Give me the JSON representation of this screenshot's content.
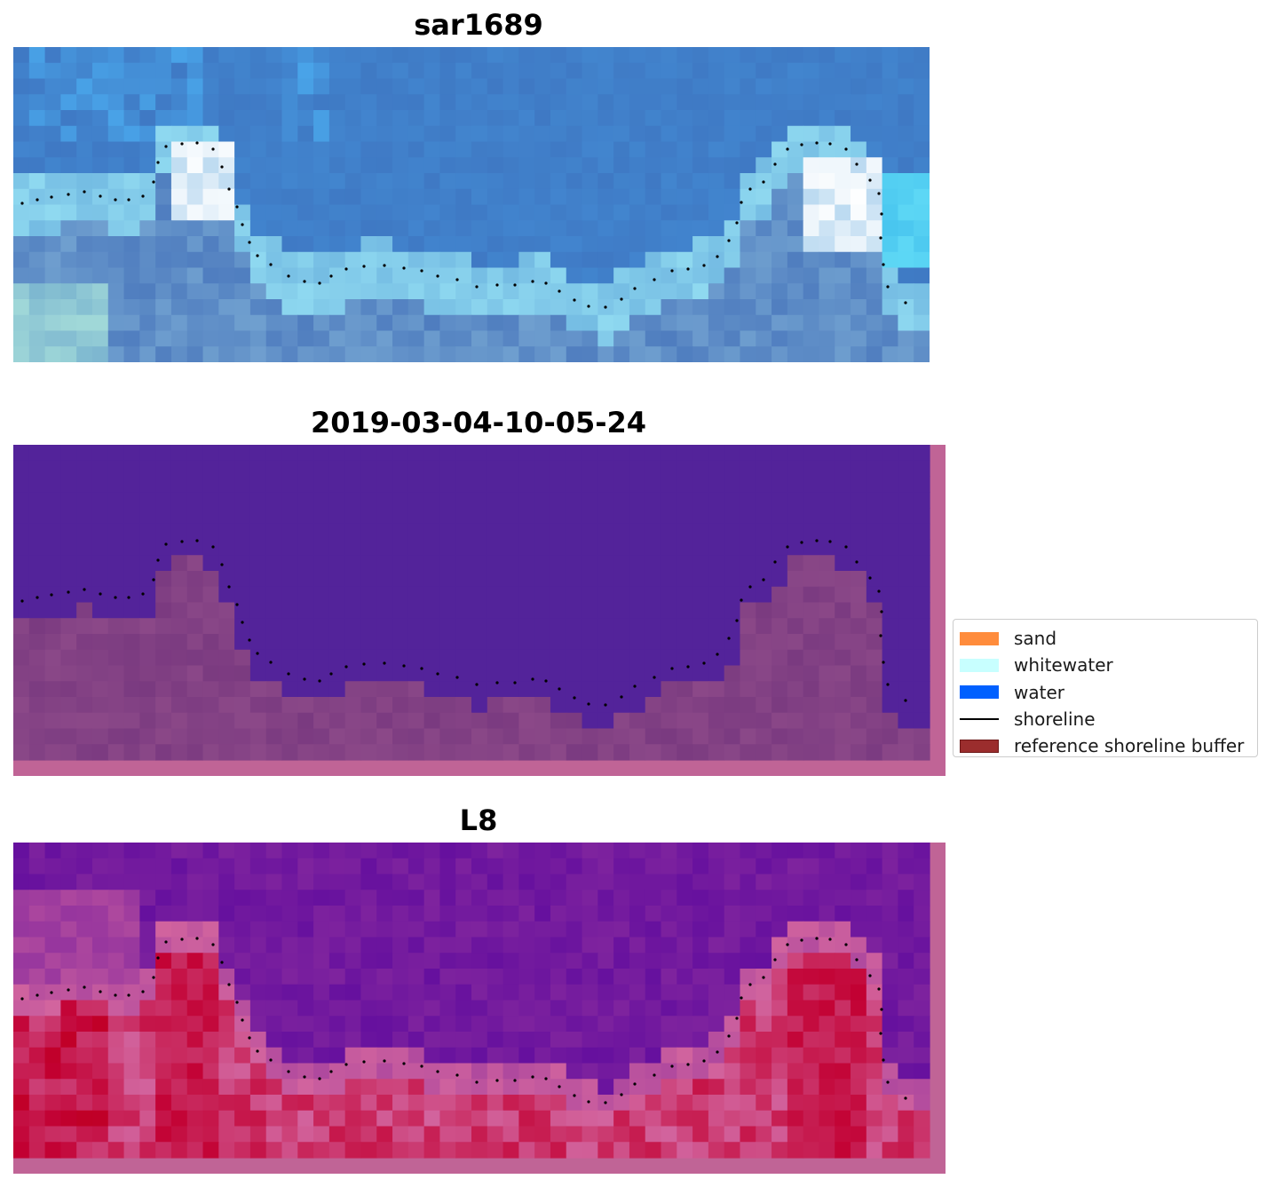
{
  "panels": [
    {
      "title": "sar1689",
      "kind": "rgb"
    },
    {
      "title": "2019-03-04-10-05-24",
      "kind": "classification"
    },
    {
      "title": "L8",
      "kind": "index"
    }
  ],
  "legend": {
    "items": [
      {
        "label": "sand",
        "color": "#ff8c3c",
        "kind": "patch"
      },
      {
        "label": "whitewater",
        "color": "#c8ffff",
        "kind": "patch"
      },
      {
        "label": "water",
        "color": "#0060ff",
        "kind": "patch"
      },
      {
        "label": "shoreline",
        "color": "#000000",
        "kind": "line"
      },
      {
        "label": "reference shoreline buffer",
        "color": "#9b2d2d",
        "kind": "patch"
      }
    ]
  },
  "colors": {
    "classification_water": "#53239a",
    "classification_sand": "#7a3a80",
    "buffer": "#c06496",
    "index_low": "#5a079e",
    "index_high": "#c20032"
  }
}
